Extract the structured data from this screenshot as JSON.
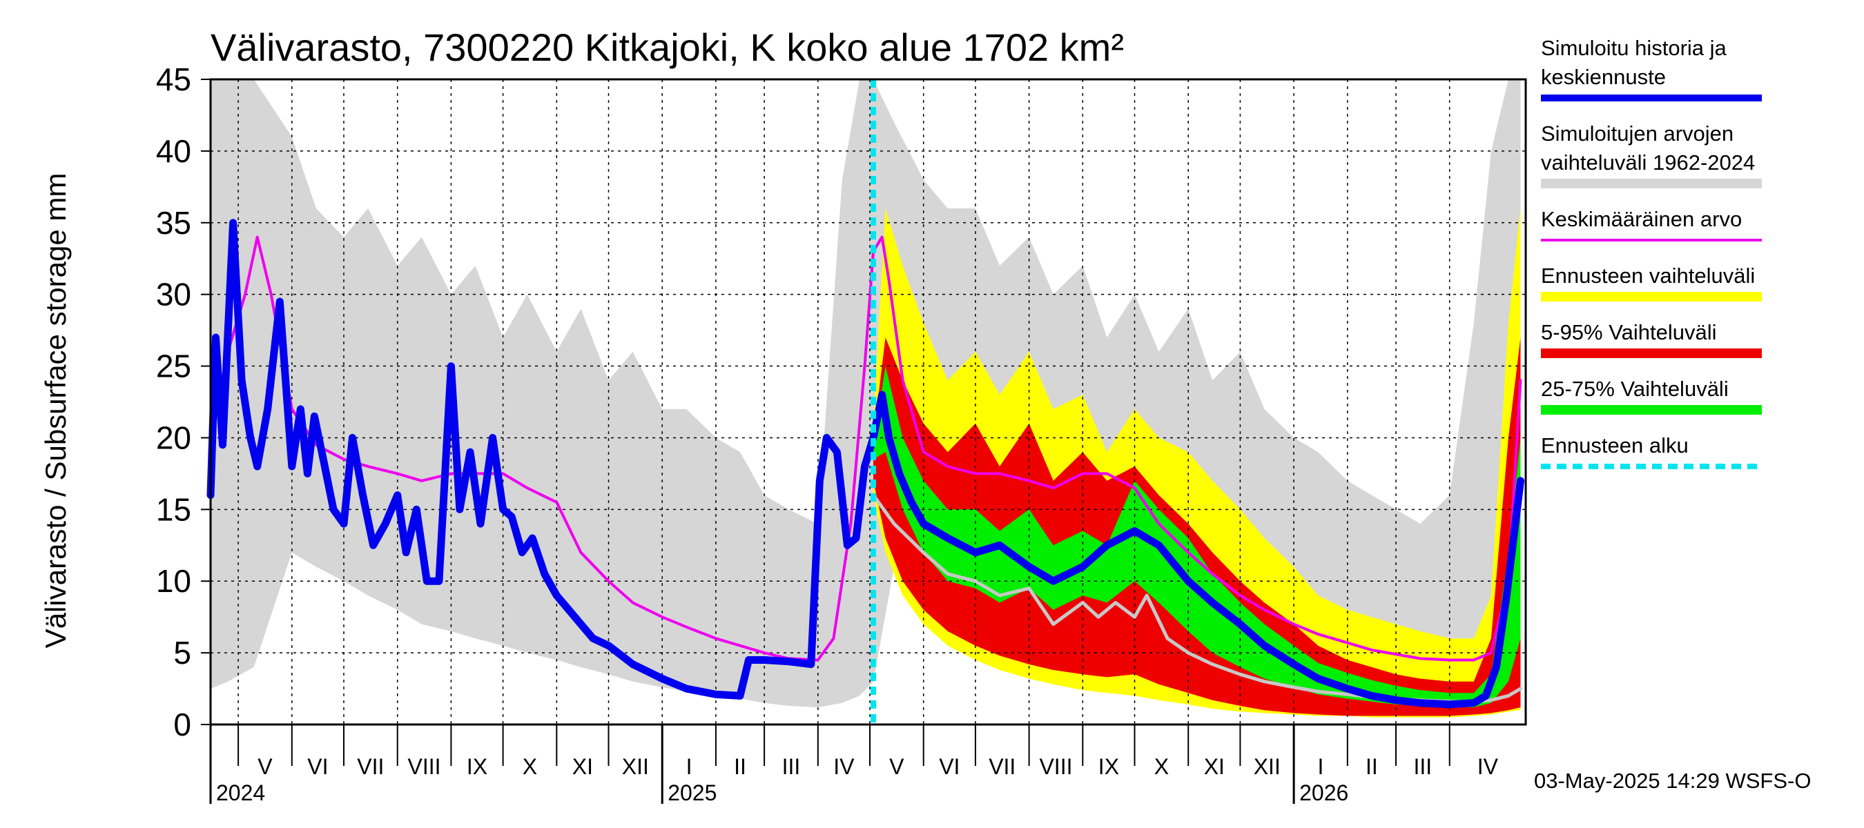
{
  "chart_data": {
    "type": "area",
    "title": "Välivarasto, 7300220 Kitkajoki, K koko alue 1702 km²",
    "ylabel": "Välivarasto / Subsurface storage  mm",
    "ylim": [
      0,
      45
    ],
    "yticks": [
      0,
      5,
      10,
      15,
      20,
      25,
      30,
      35,
      40,
      45
    ],
    "grid": true,
    "legend_position": "right",
    "x_start": "2024-04-15",
    "x_end": "2026-05-15",
    "months": [
      {
        "label": "V",
        "start": "2024-05-01"
      },
      {
        "label": "VI",
        "start": "2024-06-01"
      },
      {
        "label": "VII",
        "start": "2024-07-01"
      },
      {
        "label": "VIII",
        "start": "2024-08-01"
      },
      {
        "label": "IX",
        "start": "2024-09-01"
      },
      {
        "label": "X",
        "start": "2024-10-01"
      },
      {
        "label": "XI",
        "start": "2024-11-01"
      },
      {
        "label": "XII",
        "start": "2024-12-01"
      },
      {
        "label": "I",
        "start": "2025-01-01"
      },
      {
        "label": "II",
        "start": "2025-02-01"
      },
      {
        "label": "III",
        "start": "2025-03-01"
      },
      {
        "label": "IV",
        "start": "2025-04-01"
      },
      {
        "label": "V",
        "start": "2025-05-01"
      },
      {
        "label": "VI",
        "start": "2025-06-01"
      },
      {
        "label": "VII",
        "start": "2025-07-01"
      },
      {
        "label": "VIII",
        "start": "2025-08-01"
      },
      {
        "label": "IX",
        "start": "2025-09-01"
      },
      {
        "label": "X",
        "start": "2025-10-01"
      },
      {
        "label": "XI",
        "start": "2025-11-01"
      },
      {
        "label": "XII",
        "start": "2025-12-01"
      },
      {
        "label": "I",
        "start": "2026-01-01"
      },
      {
        "label": "II",
        "start": "2026-02-01"
      },
      {
        "label": "III",
        "start": "2026-03-01"
      },
      {
        "label": "IV",
        "start": "2026-04-01"
      }
    ],
    "years": [
      {
        "label": "2024",
        "start": "2024-04-15"
      },
      {
        "label": "2025",
        "start": "2025-01-01"
      },
      {
        "label": "2026",
        "start": "2026-01-01"
      }
    ],
    "forecast_start": "2025-05-03",
    "footer": "03-May-2025 14:29 WSFS-O",
    "colors": {
      "history": "#0000ee",
      "mean": "#ee00ee",
      "range_hist": "#d6d6d6",
      "forecast_range": "#ffff00",
      "p5_95": "#ee0000",
      "p25_75": "#00ee00",
      "forecast_start": "#00e5ee",
      "grey_line": "#c8c8c8"
    },
    "legend": [
      {
        "key": "history",
        "lines": [
          "Simuloitu historia ja",
          "keskiennuste"
        ]
      },
      {
        "key": "range_hist",
        "lines": [
          "Simuloitujen arvojen",
          "vaihteluväli 1962-2024"
        ]
      },
      {
        "key": "mean",
        "lines": [
          "Keskimääräinen arvo"
        ]
      },
      {
        "key": "forecast_range",
        "lines": [
          "Ennusteen vaihteluväli"
        ]
      },
      {
        "key": "p5_95",
        "lines": [
          "5-95% Vaihteluväli"
        ]
      },
      {
        "key": "p25_75",
        "lines": [
          "25-75% Vaihteluväli"
        ]
      },
      {
        "key": "forecast_start",
        "lines": [
          "Ennusteen alku"
        ]
      }
    ],
    "series": [
      {
        "key": "range_hist",
        "kind": "band",
        "x": [
          "2024-04-15",
          "2024-04-25",
          "2024-05-10",
          "2024-06-01",
          "2024-06-15",
          "2024-07-01",
          "2024-07-15",
          "2024-08-01",
          "2024-08-15",
          "2024-09-01",
          "2024-09-15",
          "2024-10-01",
          "2024-10-15",
          "2024-11-01",
          "2024-11-15",
          "2024-12-01",
          "2024-12-15",
          "2025-01-01",
          "2025-01-15",
          "2025-02-01",
          "2025-02-15",
          "2025-03-01",
          "2025-03-15",
          "2025-04-01",
          "2025-04-15",
          "2025-04-25",
          "2025-05-03",
          "2025-05-15",
          "2025-06-01",
          "2025-06-15",
          "2025-07-01",
          "2025-07-15",
          "2025-08-01",
          "2025-08-15",
          "2025-09-01",
          "2025-09-15",
          "2025-10-01",
          "2025-10-15",
          "2025-11-01",
          "2025-11-15",
          "2025-12-01",
          "2025-12-15",
          "2026-01-01",
          "2026-01-15",
          "2026-02-01",
          "2026-02-15",
          "2026-03-01",
          "2026-03-15",
          "2026-04-01",
          "2026-04-15",
          "2026-04-25",
          "2026-05-05",
          "2026-05-12"
        ],
        "low": [
          2.5,
          3,
          4,
          12,
          11,
          10,
          9,
          8,
          7,
          6.5,
          6,
          5.5,
          5,
          4.5,
          4,
          3.5,
          3,
          2.6,
          2.3,
          2,
          1.8,
          1.5,
          1.3,
          1.2,
          1.5,
          2,
          3,
          11,
          10,
          9,
          8,
          7,
          6,
          5.5,
          5,
          4.5,
          4,
          3.5,
          3,
          2.6,
          2.3,
          2,
          1.8,
          1.6,
          1.4,
          1.3,
          1.2,
          1.1,
          1.2,
          1.5,
          2,
          4,
          10
        ],
        "high": [
          45,
          45,
          45,
          41,
          36,
          34,
          36,
          32,
          34,
          30,
          32,
          27,
          30,
          26,
          29,
          24,
          26,
          22,
          22,
          20,
          19,
          16,
          15,
          14,
          38,
          45,
          45,
          42,
          38,
          36,
          36,
          32,
          34,
          30,
          32,
          27,
          30,
          26,
          29,
          24,
          26,
          22,
          20,
          19,
          17,
          16,
          15,
          14,
          16,
          28,
          40,
          45,
          45
        ]
      },
      {
        "key": "forecast_range",
        "kind": "band",
        "x": [
          "2025-05-03",
          "2025-05-10",
          "2025-05-20",
          "2025-06-01",
          "2025-06-15",
          "2025-07-01",
          "2025-07-15",
          "2025-08-01",
          "2025-08-15",
          "2025-09-01",
          "2025-09-15",
          "2025-10-01",
          "2025-10-15",
          "2025-11-01",
          "2025-11-15",
          "2025-12-01",
          "2025-12-15",
          "2026-01-01",
          "2026-01-15",
          "2026-02-01",
          "2026-02-15",
          "2026-03-01",
          "2026-03-15",
          "2026-04-01",
          "2026-04-15",
          "2026-04-25",
          "2026-05-05",
          "2026-05-12"
        ],
        "low": [
          16,
          12,
          9,
          7,
          5.5,
          4.5,
          3.8,
          3.2,
          2.8,
          2.4,
          2.2,
          2,
          1.7,
          1.4,
          1.1,
          0.9,
          0.8,
          0.7,
          0.6,
          0.6,
          0.5,
          0.5,
          0.5,
          0.5,
          0.6,
          0.7,
          0.9,
          1
        ],
        "high": [
          21,
          36,
          32,
          28,
          24,
          26,
          23,
          26,
          22,
          23,
          19,
          22,
          20,
          19,
          17,
          15,
          13,
          11,
          9,
          8,
          7.5,
          7,
          6.5,
          6,
          6,
          9,
          28,
          36
        ]
      },
      {
        "key": "p5_95",
        "kind": "band",
        "x": [
          "2025-05-03",
          "2025-05-10",
          "2025-05-20",
          "2025-06-01",
          "2025-06-15",
          "2025-07-01",
          "2025-07-15",
          "2025-08-01",
          "2025-08-15",
          "2025-09-01",
          "2025-09-15",
          "2025-10-01",
          "2025-10-15",
          "2025-11-01",
          "2025-11-15",
          "2025-12-01",
          "2025-12-15",
          "2026-01-01",
          "2026-01-15",
          "2026-02-01",
          "2026-02-15",
          "2026-03-01",
          "2026-03-15",
          "2026-04-01",
          "2026-04-15",
          "2026-04-25",
          "2026-05-05",
          "2026-05-12"
        ],
        "low": [
          17,
          13,
          10,
          8,
          6.5,
          5.5,
          4.8,
          4.2,
          3.8,
          3.5,
          3.3,
          3.5,
          2.8,
          2.2,
          1.7,
          1.3,
          1,
          0.8,
          0.7,
          0.6,
          0.6,
          0.6,
          0.6,
          0.6,
          0.7,
          0.8,
          1,
          1.2
        ],
        "high": [
          20,
          27,
          24,
          21,
          19,
          21,
          18,
          21,
          17,
          19,
          17,
          18,
          16,
          14,
          12,
          10,
          8.5,
          7,
          5.5,
          4.5,
          4,
          3.5,
          3.2,
          3,
          3,
          6,
          20,
          27
        ]
      },
      {
        "key": "p25_75",
        "kind": "band",
        "x": [
          "2025-05-03",
          "2025-05-10",
          "2025-05-20",
          "2025-06-01",
          "2025-06-15",
          "2025-07-01",
          "2025-07-15",
          "2025-08-01",
          "2025-08-15",
          "2025-09-01",
          "2025-09-15",
          "2025-10-01",
          "2025-10-15",
          "2025-11-01",
          "2025-11-15",
          "2025-12-01",
          "2025-12-15",
          "2026-01-01",
          "2026-01-15",
          "2026-02-01",
          "2026-02-15",
          "2026-03-01",
          "2026-03-15",
          "2026-04-01",
          "2026-04-15",
          "2026-04-25",
          "2026-05-05",
          "2026-05-12"
        ],
        "low": [
          18.5,
          19,
          15,
          12,
          10,
          9.5,
          8.5,
          9.5,
          8,
          9,
          8.5,
          10,
          8.5,
          6.5,
          5,
          4,
          3.2,
          2.6,
          2.1,
          1.8,
          1.6,
          1.4,
          1.3,
          1.2,
          1.2,
          1.5,
          3,
          6
        ],
        "high": [
          19.5,
          25,
          20,
          17,
          15,
          15,
          13.5,
          15,
          12.5,
          13.5,
          12.5,
          17,
          15,
          13,
          10.5,
          8.5,
          7,
          5.5,
          4.3,
          3.6,
          3.1,
          2.7,
          2.4,
          2.2,
          2.2,
          3.5,
          12,
          20
        ]
      },
      {
        "key": "grey_line",
        "kind": "line",
        "x": [
          "2025-05-03",
          "2025-05-15",
          "2025-06-01",
          "2025-06-15",
          "2025-07-01",
          "2025-07-15",
          "2025-08-01",
          "2025-08-15",
          "2025-09-01",
          "2025-09-10",
          "2025-09-20",
          "2025-10-01",
          "2025-10-08",
          "2025-10-20",
          "2025-11-01",
          "2025-11-15",
          "2025-12-01",
          "2025-12-15",
          "2026-01-01",
          "2026-01-15",
          "2026-02-01",
          "2026-02-15",
          "2026-03-01",
          "2026-03-15",
          "2026-04-01",
          "2026-04-15",
          "2026-04-25",
          "2026-05-05",
          "2026-05-12"
        ],
        "y": [
          16,
          14,
          12,
          10.5,
          10,
          9,
          9.5,
          7,
          8.5,
          7.5,
          8.5,
          7.5,
          9,
          6,
          5,
          4.2,
          3.5,
          3,
          2.6,
          2.3,
          2.1,
          1.9,
          1.8,
          1.7,
          1.6,
          1.6,
          1.7,
          2,
          2.5
        ]
      },
      {
        "key": "mean",
        "kind": "line",
        "x": [
          "2024-04-15",
          "2024-04-25",
          "2024-05-05",
          "2024-05-12",
          "2024-05-20",
          "2024-06-01",
          "2024-06-15",
          "2024-07-01",
          "2024-07-15",
          "2024-08-01",
          "2024-08-15",
          "2024-09-01",
          "2024-09-15",
          "2024-10-01",
          "2024-10-15",
          "2024-11-01",
          "2024-11-15",
          "2024-12-01",
          "2024-12-15",
          "2025-01-01",
          "2025-01-15",
          "2025-02-01",
          "2025-02-15",
          "2025-03-01",
          "2025-03-15",
          "2025-04-01",
          "2025-04-10",
          "2025-04-20",
          "2025-04-28",
          "2025-05-03",
          "2025-05-08",
          "2025-05-12",
          "2025-05-20",
          "2025-06-01",
          "2025-06-15",
          "2025-07-01",
          "2025-07-15",
          "2025-08-01",
          "2025-08-15",
          "2025-09-01",
          "2025-09-15",
          "2025-10-01",
          "2025-10-15",
          "2025-11-01",
          "2025-11-15",
          "2025-12-01",
          "2025-12-15",
          "2026-01-01",
          "2026-01-15",
          "2026-02-01",
          "2026-02-15",
          "2026-03-01",
          "2026-03-15",
          "2026-04-01",
          "2026-04-15",
          "2026-04-25",
          "2026-05-05",
          "2026-05-12"
        ],
        "y": [
          20,
          26,
          30,
          34,
          30,
          22,
          19.5,
          18.5,
          18,
          17.5,
          17,
          17.5,
          17.5,
          17.5,
          16.5,
          15.5,
          12,
          10,
          8.5,
          7.5,
          6.8,
          6,
          5.5,
          5,
          4.6,
          4.5,
          6,
          14,
          25,
          33,
          34,
          31,
          24,
          19,
          18,
          17.5,
          17.5,
          17,
          16.5,
          17.5,
          17.5,
          16.5,
          14,
          12,
          10.5,
          9,
          8,
          7,
          6.3,
          5.7,
          5.2,
          4.9,
          4.6,
          4.5,
          4.5,
          5,
          10,
          24
        ]
      },
      {
        "key": "history",
        "kind": "line",
        "x": [
          "2024-04-15",
          "2024-04-18",
          "2024-04-22",
          "2024-04-28",
          "2024-05-03",
          "2024-05-08",
          "2024-05-12",
          "2024-05-18",
          "2024-05-25",
          "2024-06-01",
          "2024-06-06",
          "2024-06-10",
          "2024-06-14",
          "2024-06-20",
          "2024-06-25",
          "2024-07-01",
          "2024-07-06",
          "2024-07-12",
          "2024-07-18",
          "2024-07-25",
          "2024-08-01",
          "2024-08-06",
          "2024-08-12",
          "2024-08-18",
          "2024-08-25",
          "2024-09-01",
          "2024-09-06",
          "2024-09-12",
          "2024-09-18",
          "2024-09-25",
          "2024-10-01",
          "2024-10-06",
          "2024-10-12",
          "2024-10-18",
          "2024-10-25",
          "2024-11-01",
          "2024-11-08",
          "2024-11-15",
          "2024-11-22",
          "2024-12-01",
          "2024-12-15",
          "2025-01-01",
          "2025-01-15",
          "2025-02-01",
          "2025-02-15",
          "2025-02-20",
          "2025-02-23",
          "2025-03-01",
          "2025-03-15",
          "2025-03-28",
          "2025-04-02",
          "2025-04-06",
          "2025-04-12",
          "2025-04-18",
          "2025-04-23",
          "2025-04-28",
          "2025-05-03",
          "2025-05-08",
          "2025-05-12",
          "2025-05-18",
          "2025-05-25",
          "2025-06-01",
          "2025-06-15",
          "2025-07-01",
          "2025-07-15",
          "2025-08-01",
          "2025-08-15",
          "2025-09-01",
          "2025-09-15",
          "2025-10-01",
          "2025-10-15",
          "2025-11-01",
          "2025-11-15",
          "2025-12-01",
          "2025-12-15",
          "2026-01-01",
          "2026-01-15",
          "2026-02-01",
          "2026-02-15",
          "2026-03-01",
          "2026-03-15",
          "2026-04-01",
          "2026-04-15",
          "2026-04-22",
          "2026-04-28",
          "2026-05-04",
          "2026-05-12"
        ],
        "y": [
          16,
          27,
          19.5,
          35,
          24,
          20,
          18,
          22,
          29.5,
          18,
          22,
          17.5,
          21.5,
          18,
          15,
          14,
          20,
          16,
          12.5,
          14,
          16,
          12,
          15,
          10,
          10,
          25,
          15,
          19,
          14,
          20,
          15,
          14.5,
          12,
          13,
          10.5,
          9,
          8,
          7,
          6,
          5.5,
          4.2,
          3.2,
          2.5,
          2.1,
          2,
          4.5,
          4.5,
          4.5,
          4.4,
          4.2,
          17,
          20,
          19,
          12.5,
          13,
          18,
          20,
          23,
          20,
          17.5,
          15.5,
          14,
          13,
          12,
          12.5,
          11,
          10,
          11,
          12.5,
          13.5,
          12.5,
          10,
          8.5,
          7,
          5.5,
          4.2,
          3.2,
          2.5,
          2,
          1.7,
          1.5,
          1.4,
          1.5,
          2,
          4,
          9,
          17
        ]
      }
    ]
  }
}
